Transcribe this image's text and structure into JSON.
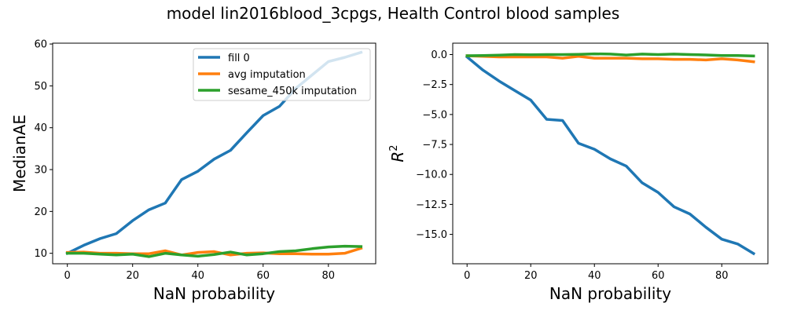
{
  "figure": {
    "suptitle": "model lin2016blood_3cpgs, Health Control blood samples"
  },
  "chart_data": [
    {
      "type": "line",
      "xlabel": "NaN probability",
      "ylabel": "MedianAE",
      "xlim": [
        -4.5,
        94.5
      ],
      "ylim": [
        7.5,
        60.2
      ],
      "xticks": [
        0,
        20,
        40,
        60,
        80
      ],
      "yticks": [
        10,
        20,
        30,
        40,
        50,
        60
      ],
      "legend_position": "upper right",
      "x": [
        0,
        5,
        10,
        15,
        20,
        25,
        30,
        35,
        40,
        45,
        50,
        55,
        60,
        65,
        70,
        75,
        80,
        85,
        90
      ],
      "series": [
        {
          "name": "fill 0",
          "color": "#1f77b4",
          "values": [
            10.0,
            11.9,
            13.5,
            14.7,
            17.8,
            20.4,
            22.0,
            27.6,
            29.6,
            32.5,
            34.6,
            38.8,
            42.9,
            45.1,
            49.4,
            52.6,
            55.8,
            56.8,
            58.0
          ]
        },
        {
          "name": "avg imputation",
          "color": "#ff7f0e",
          "values": [
            10.2,
            10.3,
            10.0,
            10.0,
            9.9,
            9.9,
            10.6,
            9.6,
            10.2,
            10.4,
            9.6,
            10.0,
            10.1,
            9.9,
            9.9,
            9.8,
            9.8,
            10.0,
            11.2
          ]
        },
        {
          "name": "sesame_450k imputation",
          "color": "#2ca02c",
          "values": [
            10.0,
            10.0,
            9.8,
            9.6,
            9.8,
            9.2,
            10.0,
            9.6,
            9.3,
            9.7,
            10.3,
            9.6,
            9.9,
            10.4,
            10.6,
            11.1,
            11.5,
            11.7,
            11.6
          ]
        }
      ]
    },
    {
      "type": "line",
      "xlabel": "NaN probability",
      "ylabel": "R2",
      "ylabel_base": "R",
      "ylabel_superscript": "2",
      "xlim": [
        -4.5,
        94.5
      ],
      "ylim": [
        -17.45,
        0.95
      ],
      "xticks": [
        0,
        20,
        40,
        60,
        80
      ],
      "yticks": [
        0.0,
        -2.5,
        -5.0,
        -7.5,
        -10.0,
        -12.5,
        -15.0
      ],
      "ytick_labels": [
        "0.0",
        "−2.5",
        "−5.0",
        "−7.5",
        "−10.0",
        "−12.5",
        "−15.0"
      ],
      "x": [
        0,
        5,
        10,
        15,
        20,
        25,
        30,
        35,
        40,
        45,
        50,
        55,
        60,
        65,
        70,
        75,
        80,
        85,
        90
      ],
      "series": [
        {
          "name": "fill 0",
          "color": "#1f77b4",
          "values": [
            -0.2,
            -1.3,
            -2.2,
            -3.0,
            -3.8,
            -5.4,
            -5.5,
            -7.4,
            -7.9,
            -8.7,
            -9.3,
            -10.7,
            -11.5,
            -12.7,
            -13.3,
            -14.4,
            -15.4,
            -15.8,
            -16.6
          ]
        },
        {
          "name": "avg imputation",
          "color": "#ff7f0e",
          "values": [
            -0.1,
            -0.15,
            -0.2,
            -0.2,
            -0.2,
            -0.2,
            -0.3,
            -0.15,
            -0.3,
            -0.3,
            -0.3,
            -0.35,
            -0.35,
            -0.4,
            -0.4,
            -0.45,
            -0.35,
            -0.45,
            -0.6
          ]
        },
        {
          "name": "sesame_450k imputation",
          "color": "#2ca02c",
          "values": [
            -0.1,
            -0.08,
            -0.05,
            0.0,
            -0.02,
            0.0,
            0.0,
            0.02,
            0.06,
            0.04,
            -0.04,
            0.04,
            0.0,
            0.04,
            0.0,
            -0.03,
            -0.08,
            -0.08,
            -0.12
          ]
        }
      ]
    }
  ]
}
